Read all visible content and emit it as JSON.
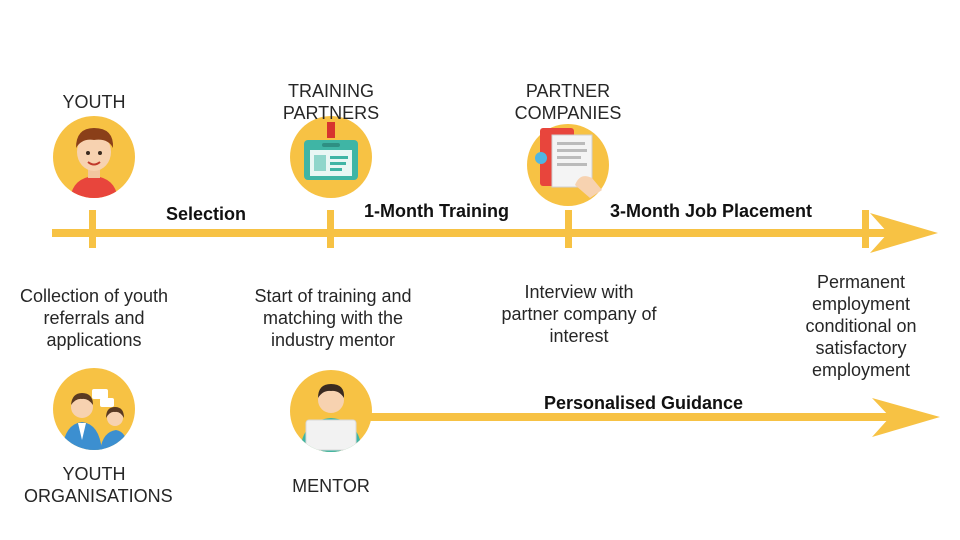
{
  "actors": {
    "youth": "YOUTH",
    "training_partners": "TRAINING PARTNERS",
    "partner_companies": "PARTNER COMPANIES",
    "youth_organisations": "YOUTH ORGANISATIONS",
    "mentor": "MENTOR"
  },
  "stages": {
    "selection": "Selection",
    "training": "1-Month Training",
    "placement": "3-Month Job Placement",
    "guidance": "Personalised Guidance"
  },
  "descriptions": {
    "collection": "Collection of youth referrals and applications",
    "start_training": "Start of training and matching with the industry mentor",
    "interview": "Interview with partner company of interest",
    "permanent": "Permanent employment conditional on satisfactory employment"
  },
  "icons": [
    "youth-avatar-icon",
    "id-badge-icon",
    "company-documents-icon",
    "youth-organisation-group-icon",
    "mentor-laptop-icon"
  ],
  "colors": {
    "accent": "#F7C244",
    "icon_circle": "#F7C244"
  }
}
